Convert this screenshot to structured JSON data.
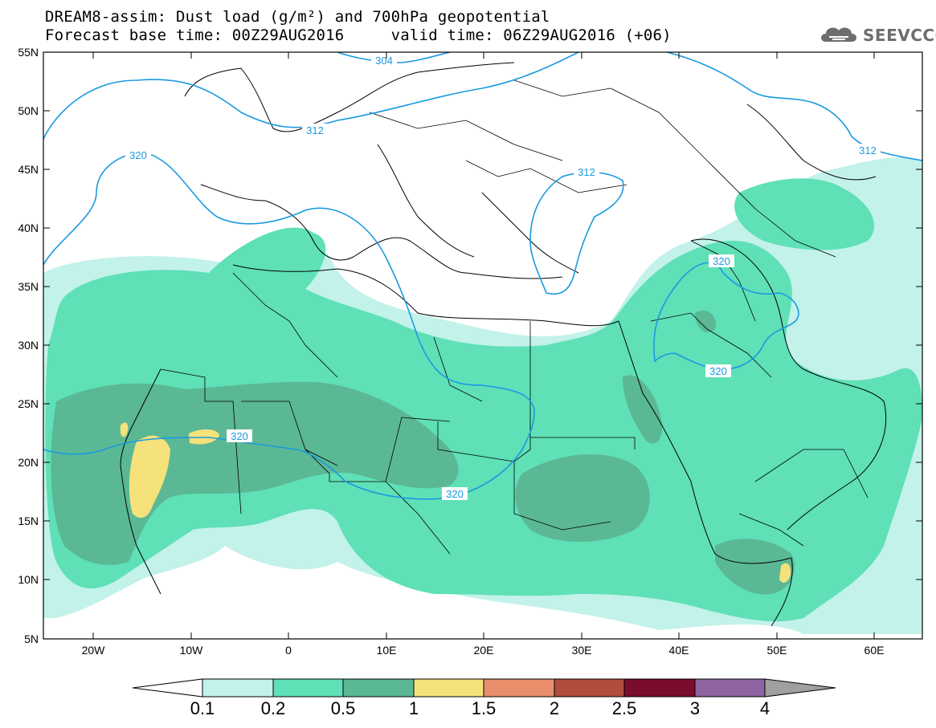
{
  "header": {
    "title_line1": "DREAM8-assim: Dust load (g/m²) and 700hPa geopotential",
    "title_line2": "Forecast base time: 00Z29AUG2016     valid time: 06Z29AUG2016 (+06)"
  },
  "logo": {
    "text": "SEEVCCC",
    "icon": "cloud-logo-icon"
  },
  "axes": {
    "lat_labels": [
      "55N",
      "50N",
      "45N",
      "40N",
      "35N",
      "30N",
      "25N",
      "20N",
      "15N",
      "10N",
      "5N"
    ],
    "lon_labels": [
      "20W",
      "10W",
      "0",
      "10E",
      "20E",
      "30E",
      "40E",
      "50E",
      "60E"
    ]
  },
  "contours": {
    "labels": [
      "304",
      "312",
      "312",
      "312",
      "320",
      "320",
      "320",
      "320",
      "320"
    ]
  },
  "colorbar": {
    "levels": [
      "0.1",
      "0.2",
      "0.5",
      "1",
      "1.5",
      "2",
      "2.5",
      "3",
      "4"
    ],
    "colors": [
      "#ffffff",
      "#c2f2ea",
      "#5fe0b7",
      "#5bb894",
      "#f5e27a",
      "#e98f6c",
      "#b04d3d",
      "#7a0d2d",
      "#8e64a0",
      "#a0a0a0"
    ]
  }
}
